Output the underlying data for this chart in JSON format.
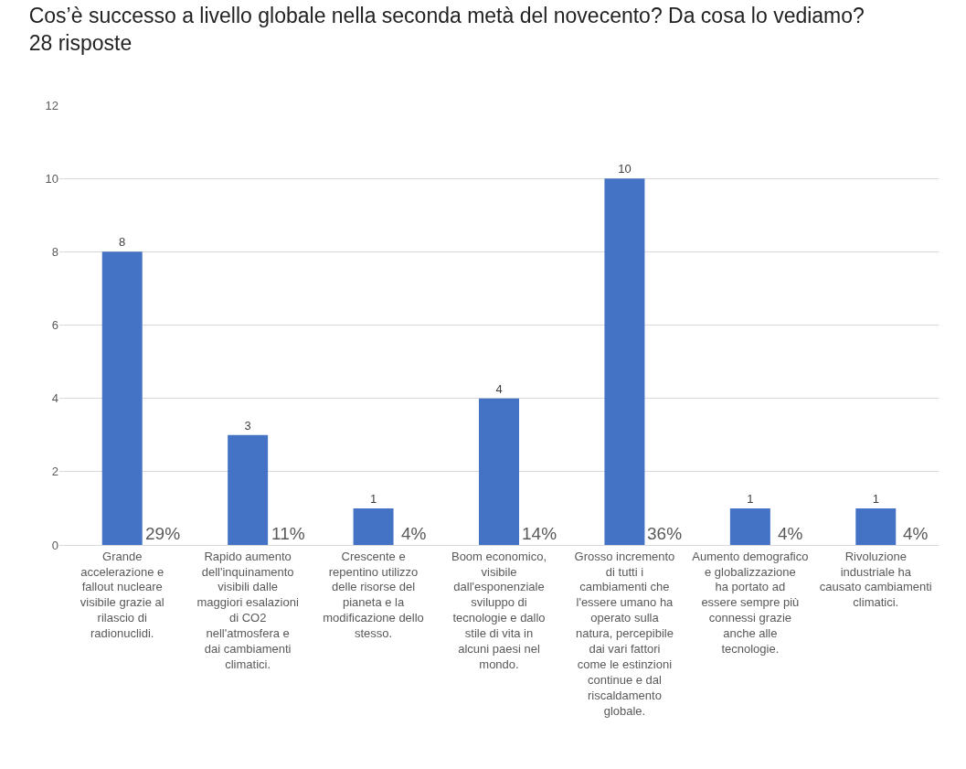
{
  "chart_data": {
    "type": "bar",
    "title": "Cos’è successo a livello globale nella seconda metà del novecento? Da cosa lo vediamo?",
    "subtitle": "28 risposte",
    "categories": [
      "Grande accelerazione e fallout nucleare visibile grazie al rilascio di radionuclidi.",
      "Rapido aumento dell'inquinamento visibili dalle maggiori esalazioni di CO2 nell'atmosfera e dai cambiamenti climatici.",
      "Crescente e repentino utilizzo delle risorse del pianeta e la modificazione dello stesso.",
      "Boom economico, visibile dall'esponenziale sviluppo di tecnologie e dallo stile di vita in alcuni paesi nel mondo.",
      "Grosso incremento di tutti i cambiamenti che l'essere umano ha operato sulla natura, percepibile dai vari fattori come le estinzioni continue e dal riscaldamento globale.",
      "Aumento demografico e globalizzazione ha portato ad essere sempre più connessi grazie anche alle tecnologie.",
      "Rivoluzione industriale ha causato cambiamenti climatici."
    ],
    "values": [
      8,
      3,
      1,
      4,
      10,
      1,
      1
    ],
    "color": "#4472c4",
    "data_labels": true,
    "ylim": [
      0,
      12
    ],
    "yticks": [
      0,
      2,
      4,
      6,
      8,
      10,
      12
    ],
    "grid": "y",
    "annotations": [
      {
        "text": "29%",
        "x": "Grande accelerazione e fallout nucleare visibile grazie al rilascio di radionuclidi.",
        "y": 0
      },
      {
        "text": "11%",
        "x": "Rapido aumento dell'inquinamento visibili dalle maggiori esalazioni di CO2 nell'atmosfera e dai cambiamenti climatici.",
        "y": 0
      },
      {
        "text": "4%",
        "x": "Crescente e repentino utilizzo delle risorse del pianeta e la modificazione dello stesso.",
        "y": 0
      },
      {
        "text": "14%",
        "x": "Boom economico, visibile dall'esponenziale sviluppo di tecnologie e dallo stile di vita in alcuni paesi nel mondo.",
        "y": 0
      },
      {
        "text": "36%",
        "x": "Grosso incremento di tutti i cambiamenti che l'essere umano ha operato sulla natura, percepibile dai vari fattori come le estinzioni continue e dal riscaldamento globale.",
        "y": 0
      },
      {
        "text": "4%",
        "x": "Aumento demografico e globalizzazione ha portato ad essere sempre più connessi grazie anche alle tecnologie.",
        "y": 0
      },
      {
        "text": "4%",
        "x": "Rivoluzione industriale ha causato cambiamenti climatici.",
        "y": 0
      }
    ]
  }
}
